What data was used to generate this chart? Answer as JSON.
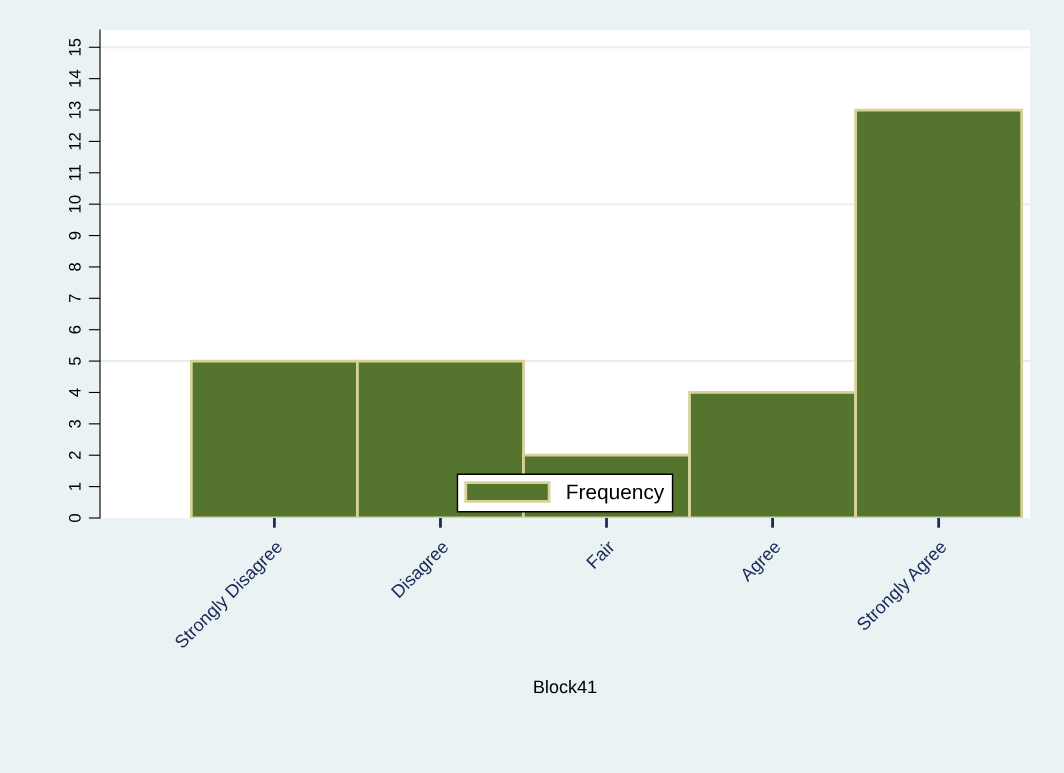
{
  "chart_data": {
    "type": "bar",
    "xlabel": "Block41",
    "categories": [
      "Strongly Disagree",
      "Disagree",
      "Fair",
      "Agree",
      "Strongly Agree"
    ],
    "series": [
      {
        "name": "Frequency",
        "color": "#55752f",
        "values": [
          5,
          5,
          2,
          4,
          13
        ]
      }
    ],
    "ylim": [
      0,
      15.55
    ],
    "yticks": [
      0,
      1,
      2,
      3,
      4,
      5,
      6,
      7,
      8,
      9,
      10,
      11,
      12,
      13,
      14,
      15
    ],
    "grid": "y",
    "legend": "bottom"
  }
}
